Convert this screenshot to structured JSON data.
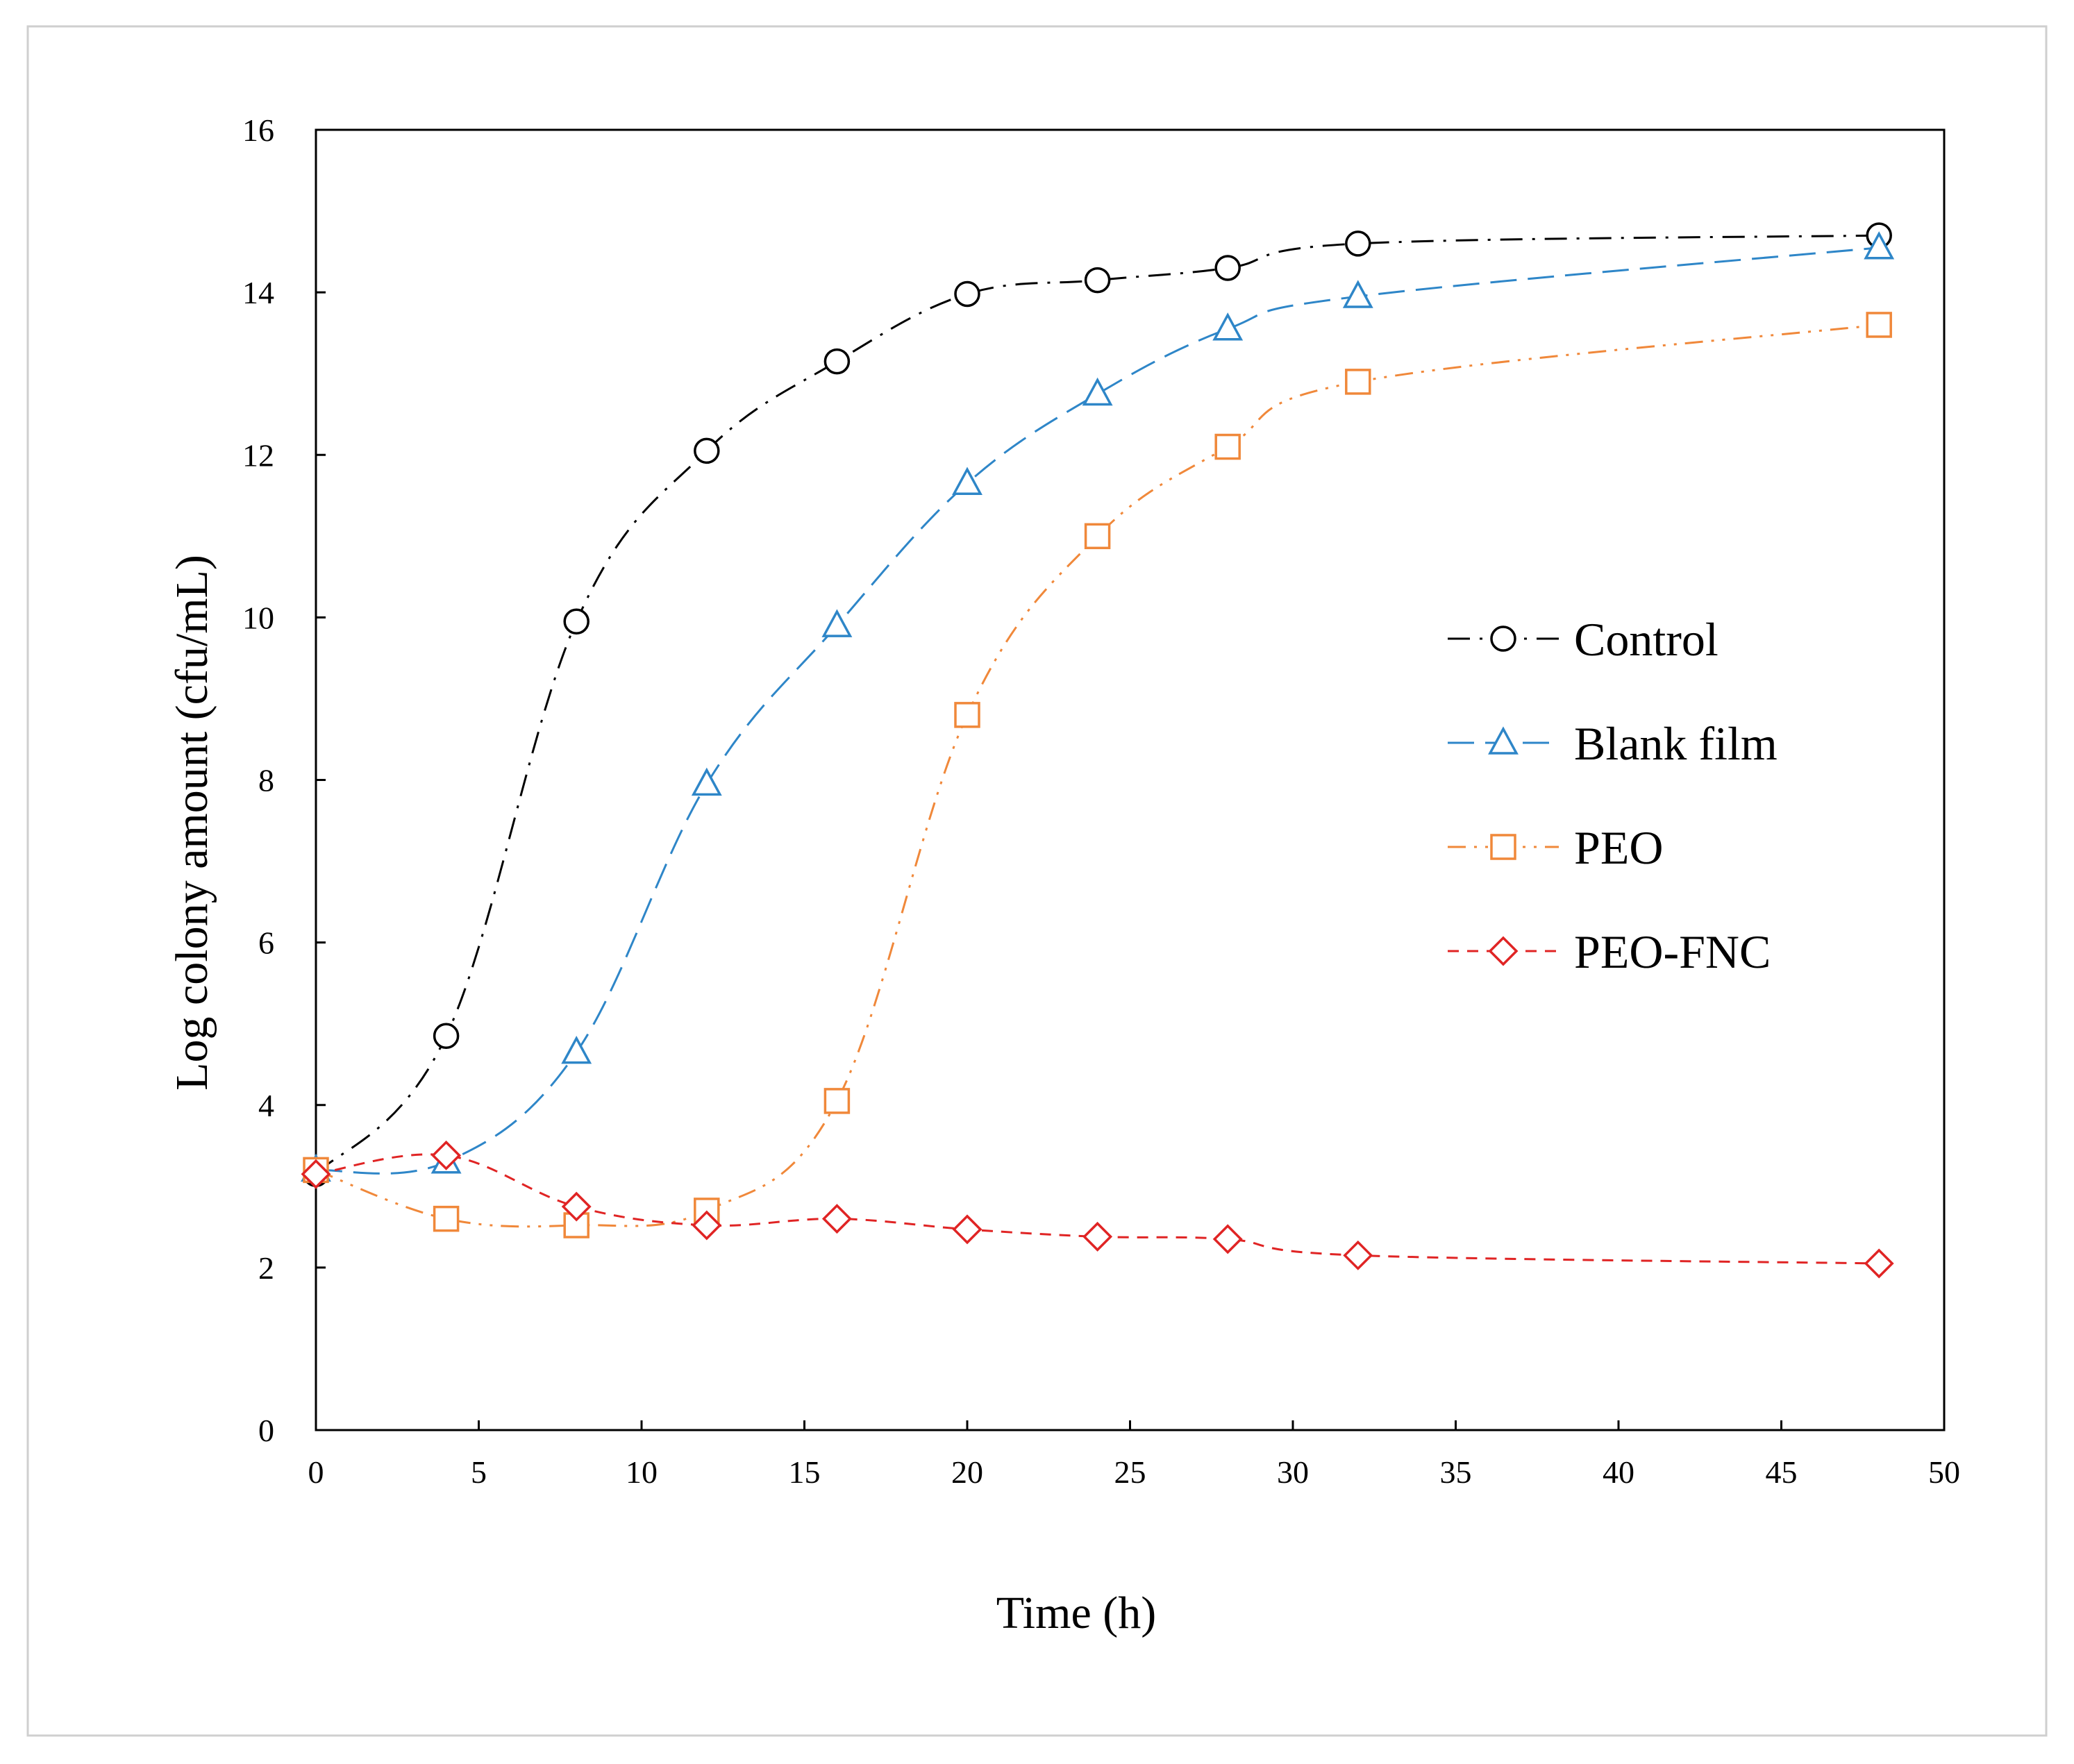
{
  "chart_data": {
    "type": "line",
    "title": "",
    "xlabel": "Time  (h)",
    "ylabel": "Log colony amount  (cfu/mL)",
    "xlim": [
      0,
      50
    ],
    "ylim": [
      0,
      16
    ],
    "xticks": [
      0,
      5,
      10,
      15,
      20,
      25,
      30,
      35,
      40,
      45,
      50
    ],
    "yticks": [
      0,
      2,
      4,
      6,
      8,
      10,
      12,
      14,
      16
    ],
    "grid": false,
    "legend_position": "center-right",
    "x": [
      0,
      4,
      8,
      12,
      16,
      20,
      24,
      28,
      32,
      48
    ],
    "series": [
      {
        "name": "Control",
        "color": "#000000",
        "marker": "circle",
        "dash": "dash-dot",
        "values": [
          3.15,
          4.85,
          9.95,
          12.05,
          13.15,
          13.98,
          14.15,
          14.3,
          14.6,
          14.7
        ]
      },
      {
        "name": "Blank film",
        "color": "#2E86C8",
        "marker": "triangle",
        "dash": "long-dash",
        "values": [
          3.2,
          3.3,
          4.65,
          7.95,
          9.9,
          11.65,
          12.75,
          13.55,
          13.95,
          14.55
        ]
      },
      {
        "name": "PEO",
        "color": "#F0883A",
        "marker": "square",
        "dash": "dash-dot-dot",
        "values": [
          3.2,
          2.6,
          2.52,
          2.7,
          4.05,
          8.8,
          11.0,
          12.1,
          12.9,
          13.6
        ]
      },
      {
        "name": "PEO-FNC",
        "color": "#E02424",
        "marker": "diamond",
        "dash": "short-dash",
        "values": [
          3.15,
          3.38,
          2.75,
          2.52,
          2.6,
          2.47,
          2.38,
          2.35,
          2.15,
          2.05
        ]
      }
    ]
  }
}
